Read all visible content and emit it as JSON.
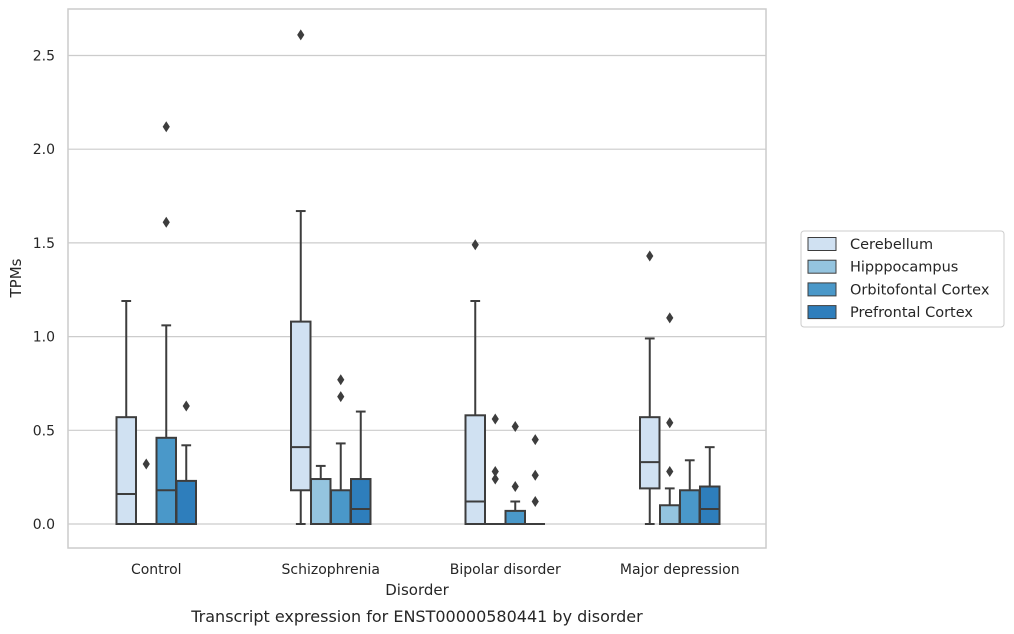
{
  "caption": "Transcript expression for ENST00000580441 by disorder",
  "chart_data": {
    "type": "box",
    "xlabel": "Disorder",
    "ylabel": "TPMs",
    "ylim": [
      -0.12,
      2.76
    ],
    "yticks": [
      0.0,
      0.5,
      1.0,
      1.5,
      2.0,
      2.5
    ],
    "ytick_labels": [
      "0.0",
      "0.5",
      "1.0",
      "1.5",
      "2.0",
      "2.5"
    ],
    "grid": "horizontal",
    "legend_position": "right",
    "categories": [
      "Control",
      "Schizophrenia",
      "Bipolar disorder",
      "Major depression"
    ],
    "series": [
      {
        "name": "Cerebellum",
        "color": "#d0e1f2",
        "boxes": [
          {
            "whislo": 0.0,
            "q1": 0.0,
            "med": 0.16,
            "q3": 0.57,
            "whishi": 1.19,
            "fliers": []
          },
          {
            "whislo": 0.0,
            "q1": 0.18,
            "med": 0.41,
            "q3": 1.08,
            "whishi": 1.67,
            "fliers": [
              2.61
            ]
          },
          {
            "whislo": 0.0,
            "q1": 0.0,
            "med": 0.12,
            "q3": 0.58,
            "whishi": 1.19,
            "fliers": [
              1.49
            ]
          },
          {
            "whislo": 0.0,
            "q1": 0.19,
            "med": 0.33,
            "q3": 0.57,
            "whishi": 0.99,
            "fliers": [
              1.43
            ]
          }
        ]
      },
      {
        "name": "Hipppocampus",
        "color": "#94c4df",
        "boxes": [
          {
            "whislo": 0.0,
            "q1": 0.0,
            "med": 0.0,
            "q3": 0.0,
            "whishi": 0.0,
            "fliers": [
              0.32
            ]
          },
          {
            "whislo": 0.0,
            "q1": 0.0,
            "med": 0.0,
            "q3": 0.24,
            "whishi": 0.31,
            "fliers": []
          },
          {
            "whislo": 0.0,
            "q1": 0.0,
            "med": 0.0,
            "q3": 0.0,
            "whishi": 0.0,
            "fliers": [
              0.24,
              0.28,
              0.56
            ]
          },
          {
            "whislo": 0.0,
            "q1": 0.0,
            "med": 0.0,
            "q3": 0.1,
            "whishi": 0.19,
            "fliers": [
              0.28,
              0.54,
              1.1
            ]
          }
        ]
      },
      {
        "name": "Orbitofontal Cortex",
        "color": "#4a98c9",
        "boxes": [
          {
            "whislo": 0.0,
            "q1": 0.0,
            "med": 0.18,
            "q3": 0.46,
            "whishi": 1.06,
            "fliers": [
              1.61,
              2.12
            ]
          },
          {
            "whislo": 0.0,
            "q1": 0.0,
            "med": 0.0,
            "q3": 0.18,
            "whishi": 0.43,
            "fliers": [
              0.68,
              0.77
            ]
          },
          {
            "whislo": 0.0,
            "q1": 0.0,
            "med": 0.0,
            "q3": 0.07,
            "whishi": 0.12,
            "fliers": [
              0.2,
              0.52
            ]
          },
          {
            "whislo": 0.0,
            "q1": 0.0,
            "med": 0.0,
            "q3": 0.18,
            "whishi": 0.34,
            "fliers": []
          }
        ]
      },
      {
        "name": "Prefrontal Cortex",
        "color": "#2e7ebc",
        "boxes": [
          {
            "whislo": 0.0,
            "q1": 0.0,
            "med": 0.0,
            "q3": 0.23,
            "whishi": 0.42,
            "fliers": [
              0.63
            ]
          },
          {
            "whislo": 0.0,
            "q1": 0.0,
            "med": 0.08,
            "q3": 0.24,
            "whishi": 0.6,
            "fliers": []
          },
          {
            "whislo": 0.0,
            "q1": 0.0,
            "med": 0.0,
            "q3": 0.0,
            "whishi": 0.0,
            "fliers": [
              0.12,
              0.26,
              0.45
            ]
          },
          {
            "whislo": 0.0,
            "q1": 0.0,
            "med": 0.08,
            "q3": 0.2,
            "whishi": 0.41,
            "fliers": []
          }
        ]
      }
    ]
  }
}
